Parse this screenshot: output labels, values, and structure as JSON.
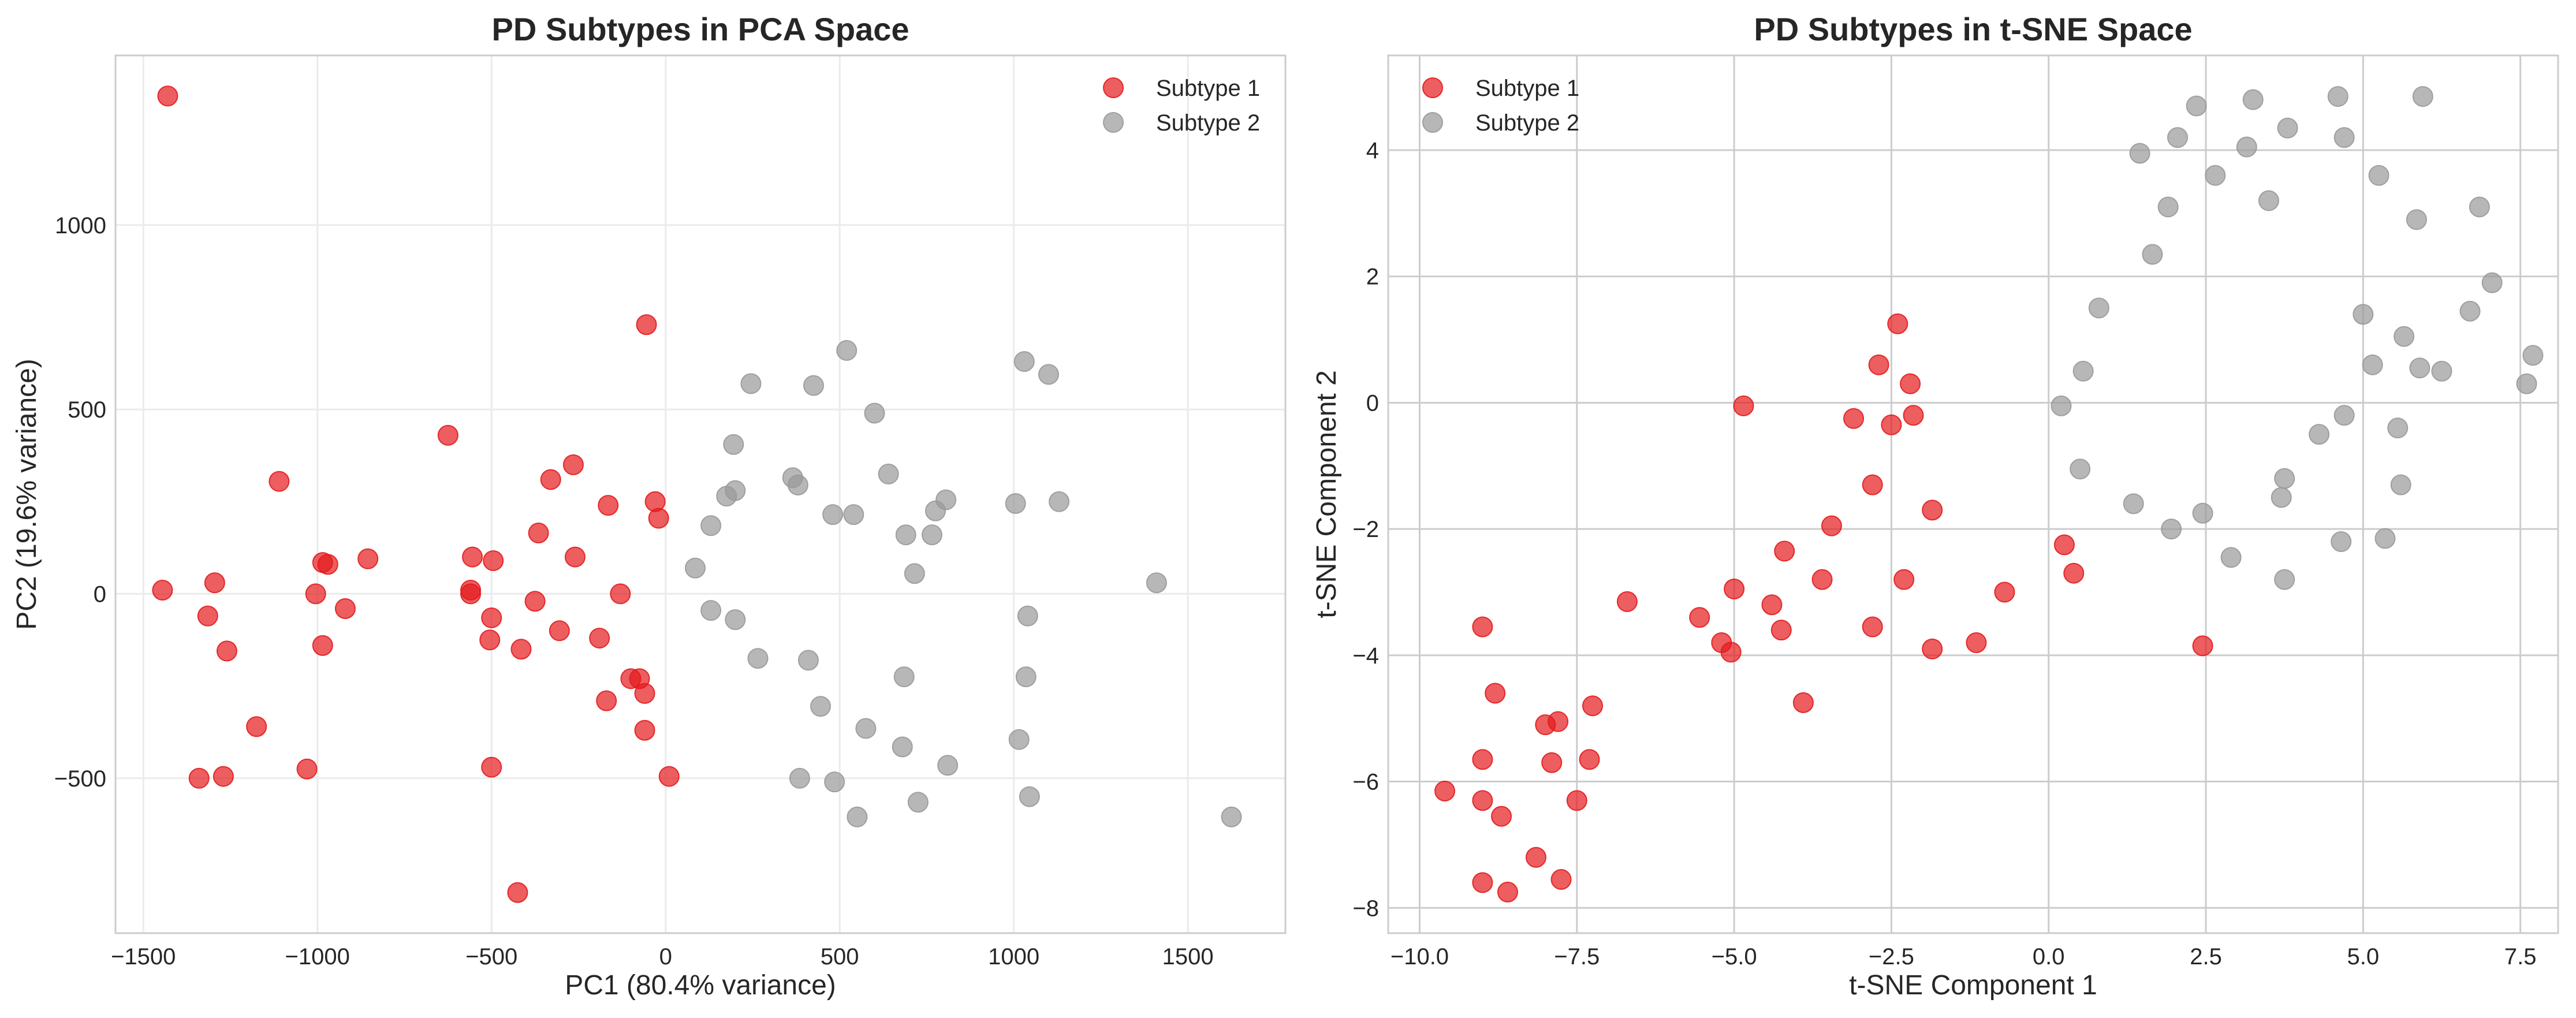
{
  "colors": {
    "subtype_1": "#e41a1c",
    "subtype_2": "#999999",
    "grid_pca": "#ebebeb",
    "grid_tsne": "#cccccc",
    "frame": "#cccccc"
  },
  "chart_data": [
    {
      "type": "scatter",
      "title": "PD Subtypes in PCA Space",
      "xlabel": "PC1 (80.4% variance)",
      "ylabel": "PC2 (19.6% variance)",
      "xlim": [
        -1580,
        1780
      ],
      "ylim": [
        -920,
        1460
      ],
      "xticks": [
        -1500,
        -1000,
        -500,
        0,
        500,
        1000,
        1500
      ],
      "xtick_labels": [
        "−1500",
        "−1000",
        "−500",
        "0",
        "500",
        "1000",
        "1500"
      ],
      "yticks": [
        -500,
        0,
        500,
        1000
      ],
      "ytick_labels": [
        "−500",
        "0",
        "500",
        "1000"
      ],
      "grid": true,
      "legend": "top-right",
      "series": [
        {
          "name": "Subtype 1",
          "color": "#e41a1c",
          "points": [
            [
              -1430,
              1350
            ],
            [
              -1445,
              10
            ],
            [
              -1295,
              30
            ],
            [
              -1315,
              -60
            ],
            [
              -1260,
              -155
            ],
            [
              -1175,
              -360
            ],
            [
              -1340,
              -500
            ],
            [
              -1270,
              -495
            ],
            [
              -1110,
              305
            ],
            [
              -1030,
              -475
            ],
            [
              -1005,
              0
            ],
            [
              -985,
              85
            ],
            [
              -970,
              80
            ],
            [
              -985,
              -140
            ],
            [
              -920,
              -40
            ],
            [
              -855,
              95
            ],
            [
              -625,
              430
            ],
            [
              -555,
              100
            ],
            [
              -560,
              10
            ],
            [
              -560,
              0
            ],
            [
              -495,
              90
            ],
            [
              -500,
              -65
            ],
            [
              -505,
              -125
            ],
            [
              -500,
              -470
            ],
            [
              -425,
              -810
            ],
            [
              -415,
              -150
            ],
            [
              -375,
              -20
            ],
            [
              -365,
              165
            ],
            [
              -330,
              310
            ],
            [
              -305,
              -100
            ],
            [
              -265,
              350
            ],
            [
              -260,
              100
            ],
            [
              -190,
              -120
            ],
            [
              -165,
              240
            ],
            [
              -170,
              -290
            ],
            [
              -130,
              0
            ],
            [
              -100,
              -230
            ],
            [
              -75,
              -230
            ],
            [
              -60,
              -270
            ],
            [
              -60,
              -370
            ],
            [
              -55,
              730
            ],
            [
              -30,
              250
            ],
            [
              -20,
              205
            ],
            [
              10,
              -495
            ]
          ]
        },
        {
          "name": "Subtype 2",
          "color": "#999999",
          "points": [
            [
              85,
              70
            ],
            [
              130,
              185
            ],
            [
              130,
              -45
            ],
            [
              175,
              265
            ],
            [
              195,
              405
            ],
            [
              200,
              280
            ],
            [
              200,
              -70
            ],
            [
              245,
              570
            ],
            [
              265,
              -175
            ],
            [
              365,
              315
            ],
            [
              380,
              295
            ],
            [
              385,
              -500
            ],
            [
              410,
              -180
            ],
            [
              425,
              565
            ],
            [
              445,
              -305
            ],
            [
              480,
              215
            ],
            [
              485,
              -510
            ],
            [
              520,
              660
            ],
            [
              540,
              215
            ],
            [
              550,
              -605
            ],
            [
              575,
              -365
            ],
            [
              600,
              490
            ],
            [
              640,
              325
            ],
            [
              680,
              -415
            ],
            [
              685,
              -225
            ],
            [
              690,
              160
            ],
            [
              715,
              55
            ],
            [
              725,
              -565
            ],
            [
              765,
              160
            ],
            [
              775,
              225
            ],
            [
              805,
              255
            ],
            [
              810,
              -465
            ],
            [
              1005,
              245
            ],
            [
              1015,
              -395
            ],
            [
              1030,
              630
            ],
            [
              1035,
              -225
            ],
            [
              1040,
              -60
            ],
            [
              1045,
              -550
            ],
            [
              1100,
              595
            ],
            [
              1130,
              250
            ],
            [
              1410,
              30
            ],
            [
              1625,
              -605
            ]
          ]
        }
      ]
    },
    {
      "type": "scatter",
      "title": "PD Subtypes in t-SNE Space",
      "xlabel": "t-SNE Component 1",
      "ylabel": "t-SNE Component 2",
      "xlim": [
        -10.5,
        8.1
      ],
      "ylim": [
        -8.4,
        5.5
      ],
      "xticks": [
        -10.0,
        -7.5,
        -5.0,
        -2.5,
        0.0,
        2.5,
        5.0,
        7.5
      ],
      "xtick_labels": [
        "−10.0",
        "−7.5",
        "−5.0",
        "−2.5",
        "0.0",
        "2.5",
        "5.0",
        "7.5"
      ],
      "yticks": [
        -8,
        -6,
        -4,
        -2,
        0,
        2,
        4
      ],
      "ytick_labels": [
        "−8",
        "−6",
        "−4",
        "−2",
        "0",
        "2",
        "4"
      ],
      "grid": true,
      "legend": "top-left",
      "series": [
        {
          "name": "Subtype 1",
          "color": "#e41a1c",
          "points": [
            [
              -9.6,
              -6.15
            ],
            [
              -9.0,
              -3.55
            ],
            [
              -9.0,
              -5.65
            ],
            [
              -9.0,
              -6.3
            ],
            [
              -9.0,
              -7.6
            ],
            [
              -8.8,
              -4.6
            ],
            [
              -8.7,
              -6.55
            ],
            [
              -8.6,
              -7.75
            ],
            [
              -8.15,
              -7.2
            ],
            [
              -8.0,
              -5.1
            ],
            [
              -7.9,
              -5.7
            ],
            [
              -7.8,
              -5.05
            ],
            [
              -7.75,
              -7.55
            ],
            [
              -7.5,
              -6.3
            ],
            [
              -7.3,
              -5.65
            ],
            [
              -7.25,
              -4.8
            ],
            [
              -6.7,
              -3.15
            ],
            [
              -5.55,
              -3.4
            ],
            [
              -5.2,
              -3.8
            ],
            [
              -5.05,
              -3.95
            ],
            [
              -5.0,
              -2.95
            ],
            [
              -4.85,
              -0.05
            ],
            [
              -4.4,
              -3.2
            ],
            [
              -4.25,
              -3.6
            ],
            [
              -4.2,
              -2.35
            ],
            [
              -3.9,
              -4.75
            ],
            [
              -3.6,
              -2.8
            ],
            [
              -3.45,
              -1.95
            ],
            [
              -3.1,
              -0.25
            ],
            [
              -2.8,
              -1.3
            ],
            [
              -2.8,
              -3.55
            ],
            [
              -2.7,
              0.6
            ],
            [
              -2.5,
              -0.35
            ],
            [
              -2.4,
              1.25
            ],
            [
              -2.3,
              -2.8
            ],
            [
              -2.2,
              0.3
            ],
            [
              -2.15,
              -0.2
            ],
            [
              -1.85,
              -1.7
            ],
            [
              -1.85,
              -3.9
            ],
            [
              -1.15,
              -3.8
            ],
            [
              -0.7,
              -3.0
            ],
            [
              0.25,
              -2.25
            ],
            [
              0.4,
              -2.7
            ],
            [
              2.45,
              -3.85
            ]
          ]
        },
        {
          "name": "Subtype 2",
          "color": "#999999",
          "points": [
            [
              0.2,
              -0.05
            ],
            [
              0.5,
              -1.05
            ],
            [
              0.55,
              0.5
            ],
            [
              0.8,
              1.5
            ],
            [
              1.35,
              -1.6
            ],
            [
              1.45,
              3.95
            ],
            [
              1.65,
              2.35
            ],
            [
              1.9,
              3.1
            ],
            [
              1.95,
              -2.0
            ],
            [
              2.05,
              4.2
            ],
            [
              2.35,
              4.7
            ],
            [
              2.45,
              -1.75
            ],
            [
              2.65,
              3.6
            ],
            [
              2.9,
              -2.45
            ],
            [
              3.15,
              4.05
            ],
            [
              3.25,
              4.8
            ],
            [
              3.5,
              3.2
            ],
            [
              3.7,
              -1.5
            ],
            [
              3.75,
              -1.2
            ],
            [
              3.75,
              -2.8
            ],
            [
              3.8,
              4.35
            ],
            [
              4.3,
              -0.5
            ],
            [
              4.6,
              4.85
            ],
            [
              4.65,
              -2.2
            ],
            [
              4.7,
              4.2
            ],
            [
              4.7,
              -0.2
            ],
            [
              5.0,
              1.4
            ],
            [
              5.15,
              0.6
            ],
            [
              5.25,
              3.6
            ],
            [
              5.35,
              -2.15
            ],
            [
              5.55,
              -0.4
            ],
            [
              5.6,
              -1.3
            ],
            [
              5.65,
              1.05
            ],
            [
              5.85,
              2.9
            ],
            [
              5.9,
              0.55
            ],
            [
              5.95,
              4.85
            ],
            [
              6.25,
              0.5
            ],
            [
              6.7,
              1.45
            ],
            [
              6.85,
              3.1
            ],
            [
              7.05,
              1.9
            ],
            [
              7.6,
              0.3
            ],
            [
              7.7,
              0.75
            ]
          ]
        }
      ]
    }
  ]
}
